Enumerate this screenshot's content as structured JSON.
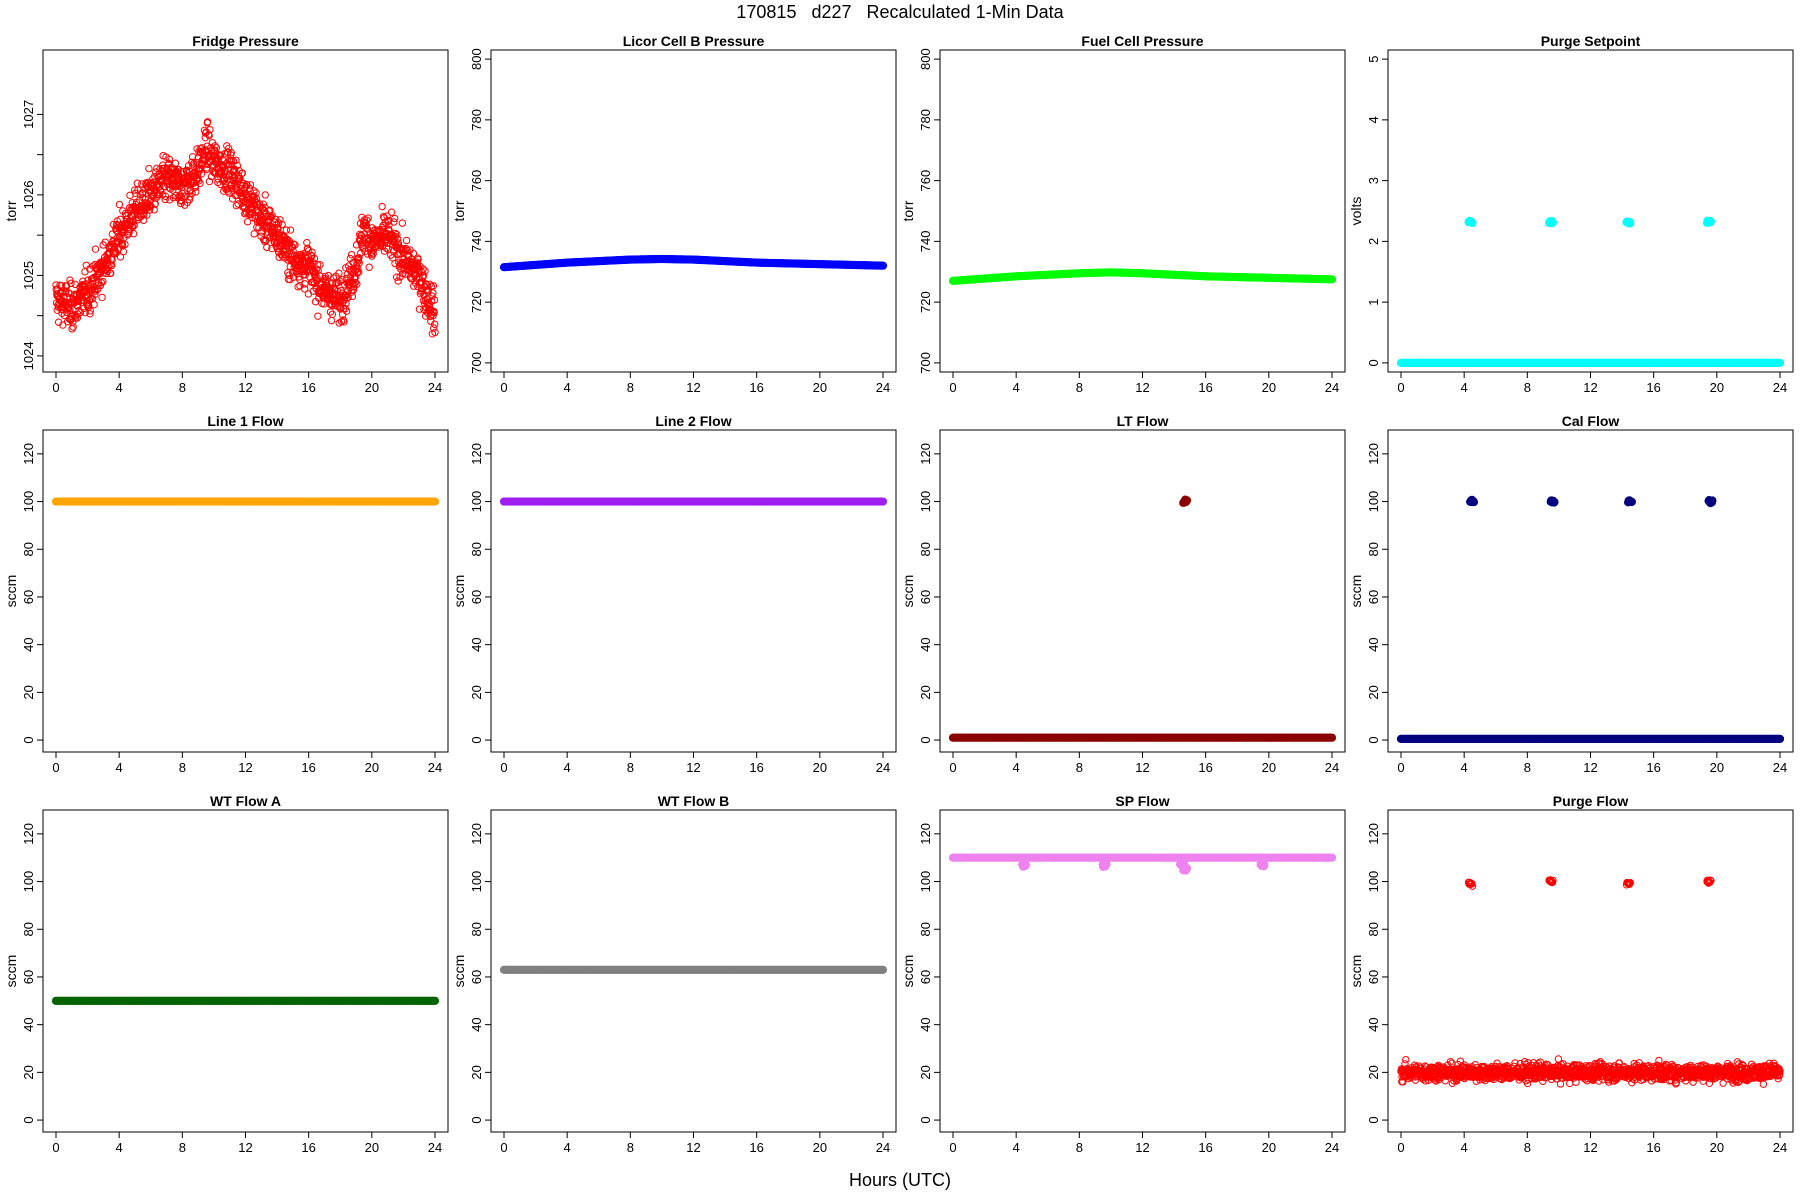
{
  "page": {
    "title": "170815   d227   Recalculated 1-Min Data",
    "xlabel": "Hours (UTC)"
  },
  "chart_data": [
    {
      "type": "scatter",
      "title": "Fridge Pressure",
      "ylabel": "torr",
      "ylim": [
        1023.8,
        1027.8
      ],
      "yticks": [
        1024.0,
        1025.0,
        1026.0,
        1027.0
      ],
      "minor_yticks": [
        1024.5,
        1025.5,
        1026.5
      ],
      "xticks": [
        0,
        4,
        8,
        12,
        16,
        20,
        24
      ],
      "xlim": [
        0,
        24
      ],
      "marker": "open",
      "series": [
        {
          "color": "#ff0000",
          "x": [
            0,
            1,
            2,
            3,
            4,
            5,
            6,
            7,
            8,
            9,
            9.5,
            10,
            11,
            12,
            13,
            14,
            15,
            16,
            17,
            18,
            19,
            19.5,
            20,
            21,
            22,
            23,
            24
          ],
          "y": [
            1024.7,
            1024.6,
            1024.8,
            1025.1,
            1025.5,
            1025.8,
            1026.0,
            1026.2,
            1026.1,
            1026.3,
            1026.6,
            1026.4,
            1026.3,
            1026.0,
            1025.7,
            1025.5,
            1025.2,
            1025.1,
            1024.8,
            1024.7,
            1025.1,
            1025.6,
            1025.4,
            1025.5,
            1025.2,
            1025.0,
            1024.5
          ],
          "noise": 0.35
        }
      ]
    },
    {
      "type": "scatter",
      "title": "Licor Cell B Pressure",
      "ylabel": "torr",
      "ylim": [
        697,
        803
      ],
      "yticks": [
        700,
        720,
        740,
        760,
        780,
        800
      ],
      "xticks": [
        0,
        4,
        8,
        12,
        16,
        20,
        24
      ],
      "xlim": [
        0,
        24
      ],
      "marker": "filled",
      "series": [
        {
          "color": "#0000ff",
          "x": [
            0,
            4,
            8,
            10,
            12,
            16,
            20,
            24
          ],
          "y": [
            731.5,
            733,
            734,
            734.2,
            734,
            733,
            732.5,
            732
          ],
          "noise": 0
        }
      ]
    },
    {
      "type": "scatter",
      "title": "Fuel Cell Pressure",
      "ylabel": "torr",
      "ylim": [
        697,
        803
      ],
      "yticks": [
        700,
        720,
        740,
        760,
        780,
        800
      ],
      "xticks": [
        0,
        4,
        8,
        12,
        16,
        20,
        24
      ],
      "xlim": [
        0,
        24
      ],
      "marker": "filled",
      "series": [
        {
          "color": "#00ff00",
          "x": [
            0,
            4,
            8,
            10,
            12,
            16,
            20,
            24
          ],
          "y": [
            727,
            728.5,
            729.5,
            729.8,
            729.5,
            728.5,
            728,
            727.5
          ],
          "noise": 0
        }
      ]
    },
    {
      "type": "scatter",
      "title": "Purge Setpoint",
      "ylabel": "volts",
      "ylim": [
        -0.15,
        5.15
      ],
      "yticks": [
        0,
        1,
        2,
        3,
        4,
        5
      ],
      "xticks": [
        0,
        4,
        8,
        12,
        16,
        20,
        24
      ],
      "xlim": [
        0,
        24
      ],
      "marker": "filled",
      "series": [
        {
          "color": "#00ffff",
          "x": [
            0,
            24
          ],
          "y": [
            0,
            0
          ],
          "noise": 0
        },
        {
          "color": "#00ffff",
          "clusters": [
            [
              4.4,
              2.32
            ],
            [
              9.5,
              2.32
            ],
            [
              14.4,
              2.31
            ],
            [
              19.5,
              2.32
            ]
          ]
        }
      ]
    },
    {
      "type": "scatter",
      "title": "Line 1 Flow",
      "ylabel": "sccm",
      "ylim": [
        -5,
        130
      ],
      "yticks": [
        0,
        20,
        40,
        60,
        80,
        100,
        120
      ],
      "xticks": [
        0,
        4,
        8,
        12,
        16,
        20,
        24
      ],
      "xlim": [
        0,
        24
      ],
      "marker": "filled",
      "series": [
        {
          "color": "#ffa500",
          "x": [
            0,
            24
          ],
          "y": [
            100,
            100
          ],
          "noise": 0
        }
      ]
    },
    {
      "type": "scatter",
      "title": "Line 2 Flow",
      "ylabel": "sccm",
      "ylim": [
        -5,
        130
      ],
      "yticks": [
        0,
        20,
        40,
        60,
        80,
        100,
        120
      ],
      "xticks": [
        0,
        4,
        8,
        12,
        16,
        20,
        24
      ],
      "xlim": [
        0,
        24
      ],
      "marker": "filled",
      "series": [
        {
          "color": "#a020f0",
          "x": [
            0,
            24
          ],
          "y": [
            100,
            100
          ],
          "noise": 0
        }
      ]
    },
    {
      "type": "scatter",
      "title": "LT Flow",
      "ylabel": "sccm",
      "ylim": [
        -5,
        130
      ],
      "yticks": [
        0,
        20,
        40,
        60,
        80,
        100,
        120
      ],
      "xticks": [
        0,
        4,
        8,
        12,
        16,
        20,
        24
      ],
      "xlim": [
        0,
        24
      ],
      "marker": "filled",
      "series": [
        {
          "color": "#8b0000",
          "x": [
            0,
            24
          ],
          "y": [
            1,
            1
          ],
          "noise": 0
        },
        {
          "color": "#8b0000",
          "clusters": [
            [
              14.7,
              100
            ]
          ]
        }
      ]
    },
    {
      "type": "scatter",
      "title": "Cal Flow",
      "ylabel": "sccm",
      "ylim": [
        -5,
        130
      ],
      "yticks": [
        0,
        20,
        40,
        60,
        80,
        100,
        120
      ],
      "xticks": [
        0,
        4,
        8,
        12,
        16,
        20,
        24
      ],
      "xlim": [
        0,
        24
      ],
      "marker": "filled",
      "series": [
        {
          "color": "#000080",
          "x": [
            0,
            24
          ],
          "y": [
            0.5,
            0.5
          ],
          "noise": 0
        },
        {
          "color": "#000080",
          "clusters": [
            [
              4.5,
              100
            ],
            [
              9.6,
              100
            ],
            [
              14.5,
              100
            ],
            [
              19.6,
              100
            ]
          ]
        }
      ]
    },
    {
      "type": "scatter",
      "title": "WT Flow A",
      "ylabel": "sccm",
      "ylim": [
        -5,
        130
      ],
      "yticks": [
        0,
        20,
        40,
        60,
        80,
        100,
        120
      ],
      "xticks": [
        0,
        4,
        8,
        12,
        16,
        20,
        24
      ],
      "xlim": [
        0,
        24
      ],
      "marker": "filled",
      "series": [
        {
          "color": "#006400",
          "x": [
            0,
            24
          ],
          "y": [
            50,
            50
          ],
          "noise": 0
        }
      ]
    },
    {
      "type": "scatter",
      "title": "WT Flow B",
      "ylabel": "sccm",
      "ylim": [
        -5,
        130
      ],
      "yticks": [
        0,
        20,
        40,
        60,
        80,
        100,
        120
      ],
      "xticks": [
        0,
        4,
        8,
        12,
        16,
        20,
        24
      ],
      "xlim": [
        0,
        24
      ],
      "marker": "filled",
      "series": [
        {
          "color": "#808080",
          "x": [
            0,
            24
          ],
          "y": [
            63,
            63
          ],
          "noise": 0
        }
      ]
    },
    {
      "type": "scatter",
      "title": "SP Flow",
      "ylabel": "sccm",
      "ylim": [
        -5,
        130
      ],
      "yticks": [
        0,
        20,
        40,
        60,
        80,
        100,
        120
      ],
      "xticks": [
        0,
        4,
        8,
        12,
        16,
        20,
        24
      ],
      "xlim": [
        0,
        24
      ],
      "marker": "filled",
      "series": [
        {
          "color": "#ee82ee",
          "x": [
            0,
            24
          ],
          "y": [
            110,
            110
          ],
          "noise": 0
        },
        {
          "color": "#ee82ee",
          "clusters": [
            [
              4.5,
              107
            ],
            [
              9.6,
              107
            ],
            [
              14.5,
              107
            ],
            [
              14.7,
              105
            ],
            [
              19.6,
              107
            ]
          ]
        }
      ]
    },
    {
      "type": "scatter",
      "title": "Purge Flow",
      "ylabel": "sccm",
      "ylim": [
        -5,
        130
      ],
      "yticks": [
        0,
        20,
        40,
        60,
        80,
        100,
        120
      ],
      "xticks": [
        0,
        4,
        8,
        12,
        16,
        20,
        24
      ],
      "xlim": [
        0,
        24
      ],
      "marker": "open",
      "series": [
        {
          "color": "#ff0000",
          "x": [
            0,
            24
          ],
          "y": [
            20,
            20
          ],
          "noise": 4.5
        },
        {
          "color": "#ff0000",
          "clusters": [
            [
              4.4,
              99
            ],
            [
              9.5,
              100
            ],
            [
              14.4,
              99
            ],
            [
              19.5,
              100
            ]
          ]
        }
      ]
    }
  ]
}
